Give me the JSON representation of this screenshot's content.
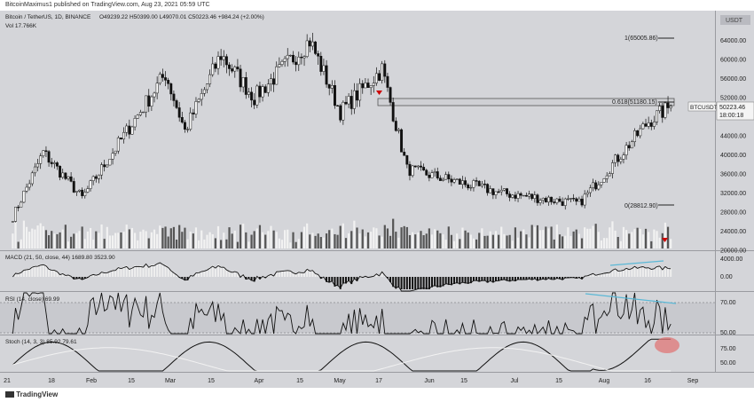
{
  "header": {
    "publisher": "BitcoinMaximus1 published on TradingView.com, Aug 23, 2021 05:59 UTC",
    "symbol": "Bitcoin / TetherUS, 1D, BINANCE",
    "ohlc": "O49239.22  H50399.00  L49070.01  C50223.46  +984.24 (+2.00%)",
    "volume": "Vol  17.766K"
  },
  "price_pane": {
    "currency": "USDT",
    "ticker_label": "BTCUSDT",
    "last_price": "50223.46",
    "countdown": "18:00:18",
    "fib_levels": [
      {
        "label": "1(65005.86)",
        "price": 65005.86
      },
      {
        "label": "0.618(51180.15)",
        "price": 51180.15
      },
      {
        "label": "0(28812.90)",
        "price": 28812.9
      }
    ],
    "resistance_zone": [
      49800,
      51180.15
    ],
    "y_ticks": [
      "64000.00",
      "60000.00",
      "56000.00",
      "52000.00",
      "48000.00",
      "44000.00",
      "40000.00",
      "36000.00",
      "32000.00",
      "28000.00",
      "24000.00",
      "20000.00"
    ]
  },
  "macd_pane": {
    "label": "MACD (21, 50, close, 44)  1689.80  3523.90",
    "y_ticks": [
      "4000.00",
      "0.00"
    ]
  },
  "rsi_pane": {
    "label": "RSI (14, close)  69.99",
    "y_ticks": [
      "70.00",
      "50.00"
    ]
  },
  "stoch_pane": {
    "label": "Stoch (14, 3, 3)  85.92  79.61",
    "y_ticks": [
      "75.00",
      "50.00"
    ]
  },
  "x_axis": {
    "ticks": [
      "21",
      "18",
      "Feb",
      "15",
      "Mar",
      "15",
      "Apr",
      "15",
      "May",
      "17",
      "Jun",
      "15",
      "Jul",
      "15",
      "Aug",
      "16",
      "Sep"
    ]
  },
  "footer": {
    "brand": "TradingView"
  },
  "colors": {
    "background": "#d4d5d9",
    "up": "#ffffff",
    "down": "#111111",
    "trendline": "#5bb8d6",
    "highlight": "#e07575",
    "marker": "#cc0000"
  },
  "chart_data": {
    "type": "candlestick",
    "title": "",
    "x_range": [
      "2020-12-25",
      "2021-09-05"
    ],
    "ylim": [
      20000,
      68000
    ],
    "key_points": [
      {
        "date": "2020-12-28",
        "close": 27000
      },
      {
        "date": "2021-01-08",
        "close": 40500
      },
      {
        "date": "2021-01-22",
        "close": 31000
      },
      {
        "date": "2021-02-21",
        "close": 57000
      },
      {
        "date": "2021-02-28",
        "close": 45000
      },
      {
        "date": "2021-03-13",
        "close": 61000
      },
      {
        "date": "2021-03-25",
        "close": 52000
      },
      {
        "date": "2021-04-14",
        "close": 64000
      },
      {
        "date": "2021-04-25",
        "close": 49000
      },
      {
        "date": "2021-05-10",
        "close": 58000
      },
      {
        "date": "2021-05-19",
        "close": 37000
      },
      {
        "date": "2021-06-22",
        "close": 32000
      },
      {
        "date": "2021-07-20",
        "close": 29800
      },
      {
        "date": "2021-08-14",
        "close": 47000
      },
      {
        "date": "2021-08-22",
        "close": 50223.46
      }
    ]
  }
}
